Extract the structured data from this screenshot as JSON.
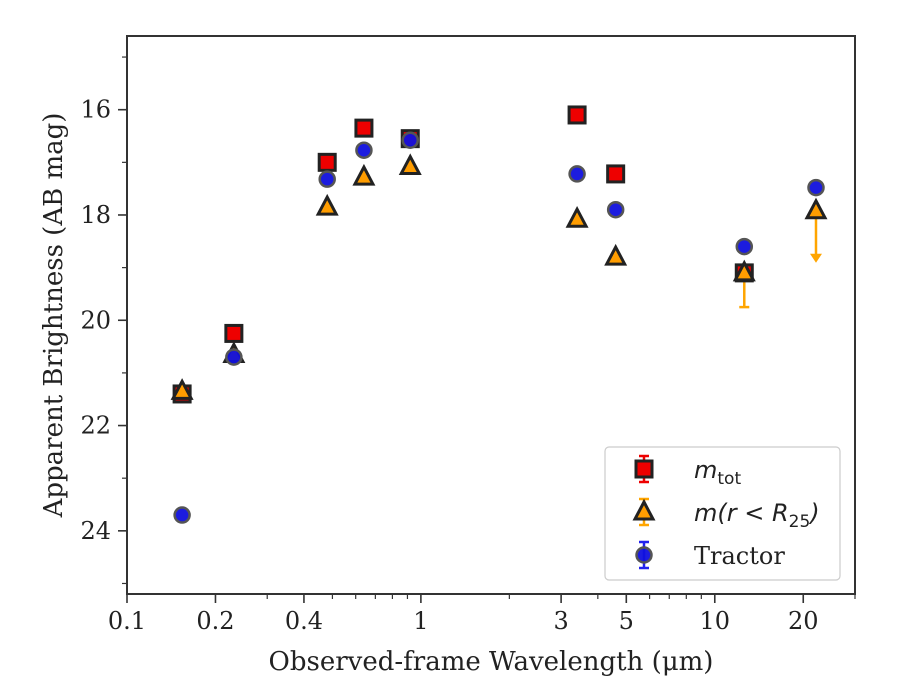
{
  "chart_data": {
    "type": "scatter",
    "title": "",
    "xlabel": "Observed-frame Wavelength (μm)",
    "ylabel": "Apparent Brightness (AB mag)",
    "xscale": "log",
    "xlim": [
      0.1,
      30
    ],
    "ylim": [
      25.2,
      14.6
    ],
    "y_inverted": true,
    "x_ticks": [
      0.1,
      0.2,
      0.4,
      1,
      3,
      5,
      10,
      20
    ],
    "x_tick_labels": [
      "0.1",
      "0.2",
      "0.4",
      "1",
      "3",
      "5",
      "10",
      "20"
    ],
    "y_ticks": [
      16,
      18,
      20,
      22,
      24
    ],
    "y_tick_labels": [
      "16",
      "18",
      "20",
      "22",
      "24"
    ],
    "grid": false,
    "legend_position": "lower-right",
    "series": [
      {
        "name": "m_tot",
        "marker": "square",
        "color": "#ee0000",
        "edge_color": "#222222",
        "points": [
          {
            "x": 0.154,
            "y": 21.4
          },
          {
            "x": 0.231,
            "y": 20.25
          },
          {
            "x": 0.48,
            "y": 17.0
          },
          {
            "x": 0.64,
            "y": 16.35
          },
          {
            "x": 0.92,
            "y": 16.55
          },
          {
            "x": 3.4,
            "y": 16.1
          },
          {
            "x": 4.6,
            "y": 17.22
          },
          {
            "x": 12.6,
            "y": 19.1,
            "yerr": [
              0.2,
              0.65
            ]
          }
        ]
      },
      {
        "name": "m(r<R25)",
        "marker": "triangle",
        "color": "#ff9d00",
        "edge_color": "#222222",
        "points": [
          {
            "x": 0.154,
            "y": 21.35
          },
          {
            "x": 0.231,
            "y": 20.65
          },
          {
            "x": 0.48,
            "y": 17.85
          },
          {
            "x": 0.64,
            "y": 17.28
          },
          {
            "x": 0.92,
            "y": 17.08
          },
          {
            "x": 3.4,
            "y": 18.08
          },
          {
            "x": 4.6,
            "y": 18.8
          },
          {
            "x": 12.6,
            "y": 19.1
          },
          {
            "x": 22.1,
            "y": 17.92,
            "upper_limit_to": 18.85
          }
        ]
      },
      {
        "name": "Tractor",
        "marker": "circle",
        "color": "#1010dd",
        "edge_color": "#555555",
        "points": [
          {
            "x": 0.154,
            "y": 23.7
          },
          {
            "x": 0.231,
            "y": 20.7
          },
          {
            "x": 0.48,
            "y": 17.32
          },
          {
            "x": 0.64,
            "y": 16.77
          },
          {
            "x": 0.92,
            "y": 16.58
          },
          {
            "x": 3.4,
            "y": 17.22
          },
          {
            "x": 4.6,
            "y": 17.9
          },
          {
            "x": 12.6,
            "y": 18.6
          },
          {
            "x": 22.1,
            "y": 17.48
          }
        ]
      }
    ],
    "legend": [
      {
        "series": 0,
        "label_main": "m",
        "label_sub": "tot",
        "label_plain": ""
      },
      {
        "series": 1,
        "label_main": "m(r < R",
        "label_sub": "25",
        "label_plain": ")"
      },
      {
        "series": 2,
        "label_main": "",
        "label_sub": "",
        "label_plain": "Tractor"
      }
    ]
  }
}
